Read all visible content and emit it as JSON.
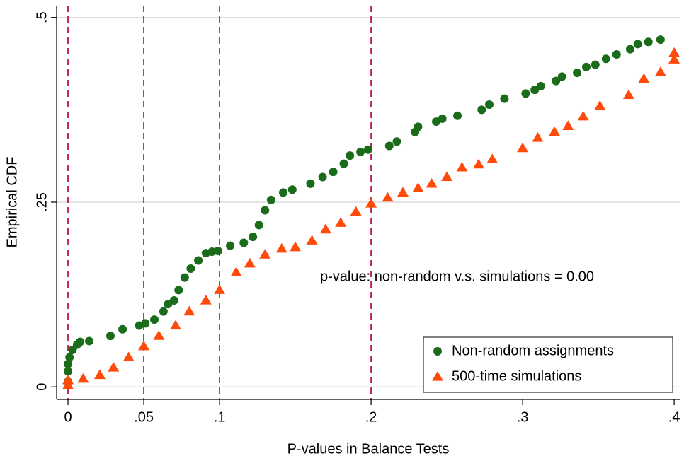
{
  "chart_data": {
    "type": "scatter",
    "xlabel": "P-values in Balance Tests",
    "ylabel": "Empirical CDF",
    "annotation": "p-value: non-random v.s. simulations = 0.00",
    "xlim": [
      -0.0075,
      0.4037
    ],
    "ylim": [
      -0.017,
      0.516
    ],
    "xticks": [
      0,
      {
        "value": 0.05,
        "label": ".05"
      },
      {
        "value": 0.1,
        "label": ".1"
      },
      {
        "value": 0.2,
        "label": ".2"
      },
      {
        "value": 0.3,
        "label": ".3"
      },
      {
        "value": 0.4,
        "label": ".4"
      }
    ],
    "yticks": [
      0,
      {
        "value": 0.25,
        "label": ".25"
      },
      {
        "value": 0.5,
        "label": ".5"
      }
    ],
    "reference_lines_x": [
      0,
      0.05,
      0.1,
      0.2
    ],
    "reference_line_color": "#b8174f",
    "grid": true,
    "legend": "bottom-right",
    "series": [
      {
        "name": "Non-random assignments",
        "color": "#1a6b1a",
        "marker": "circle",
        "x": [
          0,
          0,
          0,
          0.001,
          0.003,
          0.006,
          0.008,
          0.014,
          0.028,
          0.036,
          0.047,
          0.051,
          0.057,
          0.063,
          0.066,
          0.07,
          0.073,
          0.077,
          0.081,
          0.086,
          0.091,
          0.095,
          0.099,
          0.107,
          0.116,
          0.122,
          0.126,
          0.13,
          0.134,
          0.142,
          0.148,
          0.16,
          0.168,
          0.175,
          0.182,
          0.186,
          0.193,
          0.198,
          0.212,
          0.217,
          0.229,
          0.231,
          0.243,
          0.247,
          0.257,
          0.273,
          0.278,
          0.288,
          0.302,
          0.308,
          0.312,
          0.322,
          0.326,
          0.336,
          0.342,
          0.348,
          0.355,
          0.362,
          0.371,
          0.376,
          0.383,
          0.391
        ],
        "values": [
          0.007,
          0.021,
          0.031,
          0.04,
          0.05,
          0.057,
          0.061,
          0.062,
          0.069,
          0.078,
          0.083,
          0.086,
          0.091,
          0.102,
          0.112,
          0.117,
          0.131,
          0.148,
          0.16,
          0.171,
          0.181,
          0.183,
          0.184,
          0.191,
          0.195,
          0.203,
          0.219,
          0.239,
          0.253,
          0.263,
          0.267,
          0.275,
          0.284,
          0.291,
          0.302,
          0.313,
          0.318,
          0.321,
          0.326,
          0.332,
          0.345,
          0.352,
          0.359,
          0.363,
          0.367,
          0.375,
          0.382,
          0.39,
          0.397,
          0.402,
          0.407,
          0.414,
          0.42,
          0.425,
          0.433,
          0.436,
          0.444,
          0.45,
          0.457,
          0.464,
          0.467,
          0.47
        ]
      },
      {
        "name": "500-time simulations",
        "color": "#ff4a0a",
        "marker": "triangle",
        "x": [
          0,
          0,
          0.01,
          0.021,
          0.03,
          0.04,
          0.05,
          0.06,
          0.071,
          0.08,
          0.091,
          0.1,
          0.111,
          0.12,
          0.13,
          0.141,
          0.15,
          0.161,
          0.17,
          0.18,
          0.19,
          0.2,
          0.211,
          0.221,
          0.231,
          0.24,
          0.25,
          0.26,
          0.271,
          0.28,
          0.3,
          0.31,
          0.321,
          0.33,
          0.34,
          0.351,
          0.37,
          0.38,
          0.391,
          0.4,
          0.4
        ],
        "values": [
          0.002,
          0.009,
          0.011,
          0.016,
          0.026,
          0.04,
          0.055,
          0.069,
          0.083,
          0.102,
          0.117,
          0.131,
          0.155,
          0.167,
          0.179,
          0.187,
          0.189,
          0.198,
          0.213,
          0.222,
          0.237,
          0.248,
          0.256,
          0.263,
          0.269,
          0.275,
          0.284,
          0.297,
          0.301,
          0.308,
          0.323,
          0.337,
          0.345,
          0.353,
          0.366,
          0.38,
          0.395,
          0.417,
          0.426,
          0.443,
          0.452
        ]
      }
    ]
  }
}
